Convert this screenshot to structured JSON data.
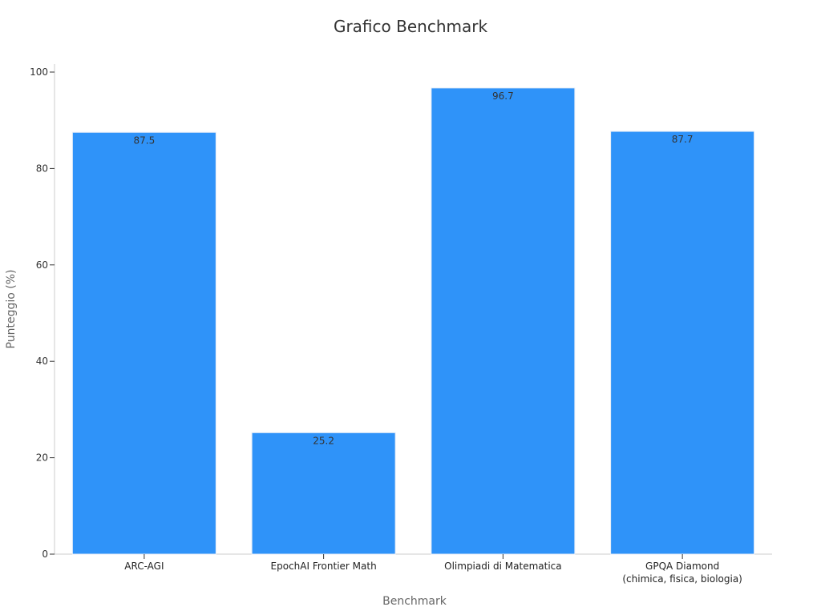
{
  "chart_data": {
    "type": "bar",
    "title": "Grafico Benchmark",
    "xlabel": "Benchmark",
    "ylabel": "Punteggio (%)",
    "categories": [
      [
        "ARC-AGI"
      ],
      [
        "EpochAI Frontier Math"
      ],
      [
        "Olimpiadi di Matematica"
      ],
      [
        "GPQA Diamond",
        "(chimica, fisica, biologia)"
      ]
    ],
    "values": [
      87.5,
      25.2,
      96.7,
      87.7
    ],
    "value_labels": [
      "87.5",
      "25.2",
      "96.7",
      "87.7"
    ],
    "ylim": [
      0,
      100
    ],
    "yticks": [
      0,
      20,
      40,
      60,
      80,
      100
    ],
    "grid": false,
    "bar_color": "#2f93f9"
  }
}
